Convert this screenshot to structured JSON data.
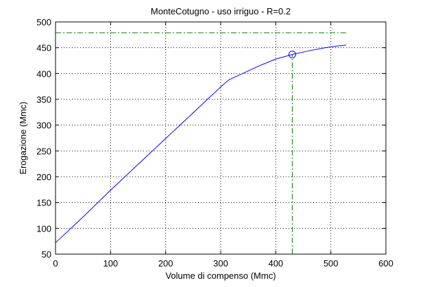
{
  "chart_data": {
    "type": "line",
    "title": "MonteCotugno  -  uso irriguo  -   R=0.2",
    "xlabel": "Volume di compenso (Mmc)",
    "ylabel": "Erogazione (Mmc)",
    "xlim": [
      0,
      600
    ],
    "ylim": [
      50,
      500
    ],
    "xticks": [
      0,
      100,
      200,
      300,
      400,
      500,
      600
    ],
    "yticks": [
      50,
      100,
      150,
      200,
      250,
      300,
      350,
      400,
      450,
      500
    ],
    "grid": true,
    "series": [
      {
        "color": "#0000ff",
        "style": "solid",
        "x": [
          0,
          50,
          100,
          150,
          200,
          250,
          300,
          315,
          340,
          370,
          400,
          430,
          460,
          490,
          510,
          528
        ],
        "y": [
          72,
          122,
          174,
          224,
          274,
          324,
          374,
          388,
          400,
          415,
          428,
          437,
          444,
          450,
          453,
          455
        ]
      }
    ],
    "reference_lines": [
      {
        "orientation": "horizontal",
        "y": 479,
        "x_range": [
          0,
          528
        ],
        "color": "#008000",
        "style": "dashdot"
      },
      {
        "orientation": "vertical",
        "x": 430,
        "y_range": [
          50,
          437
        ],
        "color": "#008000",
        "style": "dashdot"
      }
    ],
    "marker": {
      "x": 430,
      "y": 437,
      "shape": "circle",
      "color": "#0000ff"
    }
  }
}
